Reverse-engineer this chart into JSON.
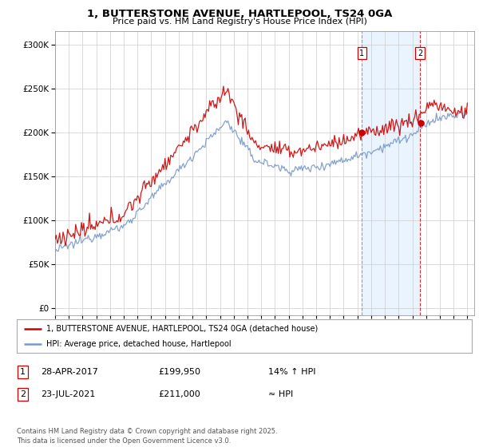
{
  "title_line1": "1, BUTTERSTONE AVENUE, HARTLEPOOL, TS24 0GA",
  "title_line2": "Price paid vs. HM Land Registry's House Price Index (HPI)",
  "yticks": [
    0,
    50000,
    100000,
    150000,
    200000,
    250000,
    300000
  ],
  "x_start_year": 1995,
  "x_end_year": 2025,
  "sale1_date": "28-APR-2017",
  "sale1_price": 199950,
  "sale1_label": "14% ↑ HPI",
  "sale1_x": 2017.32,
  "sale2_date": "23-JUL-2021",
  "sale2_price": 211000,
  "sale2_label": "≈ HPI",
  "sale2_x": 2021.55,
  "line_color_property": "#cc0000",
  "line_color_hpi": "#7799cc",
  "shade_color": "#ddeeff",
  "dashed1_color": "#888888",
  "dashed2_color": "#cc0000",
  "dot_color": "#cc0000",
  "legend_label1": "1, BUTTERSTONE AVENUE, HARTLEPOOL, TS24 0GA (detached house)",
  "legend_label2": "HPI: Average price, detached house, Hartlepool",
  "table_row1": [
    "1",
    "28-APR-2017",
    "£199,950",
    "14% ↑ HPI"
  ],
  "table_row2": [
    "2",
    "23-JUL-2021",
    "£211,000",
    "≈ HPI"
  ],
  "footer": "Contains HM Land Registry data © Crown copyright and database right 2025.\nThis data is licensed under the Open Government Licence v3.0.",
  "grid_color": "#cccccc",
  "background_color": "#ffffff"
}
